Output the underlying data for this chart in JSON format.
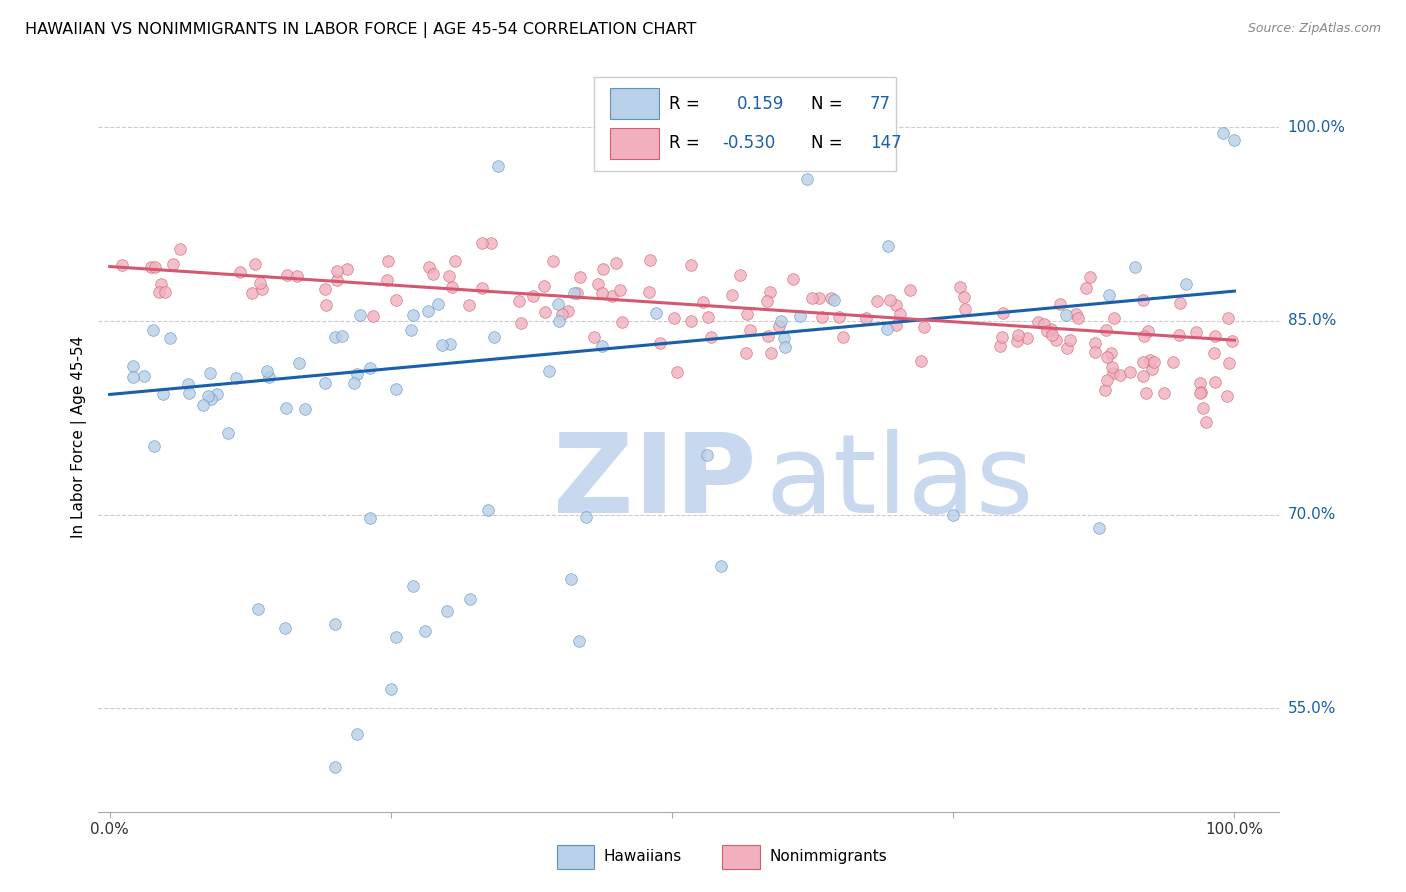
{
  "title": "HAWAIIAN VS NONIMMIGRANTS IN LABOR FORCE | AGE 45-54 CORRELATION CHART",
  "source_text": "Source: ZipAtlas.com",
  "ylabel": "In Labor Force | Age 45-54",
  "xlim": [
    -0.01,
    1.04
  ],
  "ylim": [
    0.47,
    1.05
  ],
  "ytick_positions": [
    0.55,
    0.7,
    0.85,
    1.0
  ],
  "ytick_labels": [
    "55.0%",
    "70.0%",
    "85.0%",
    "100.0%"
  ],
  "xtick_positions": [
    0.0,
    0.25,
    0.5,
    0.75,
    1.0
  ],
  "xtick_labels": [
    "0.0%",
    "",
    "",
    "",
    "100.0%"
  ],
  "hawaiians_R": 0.159,
  "hawaiians_N": 77,
  "nonimmigrants_R": -0.53,
  "nonimmigrants_N": 147,
  "hawaiian_fill": "#b8d0e8",
  "hawaiian_edge": "#6090c0",
  "nonimmigrant_fill": "#f0b0be",
  "nonimmigrant_edge": "#d06070",
  "trendline_hawaiian": "#1a5faa",
  "trendline_nonimmigrant": "#d45870",
  "background_color": "#ffffff",
  "grid_color": "#cccccc",
  "watermark_zip_color": "#c8d8ee",
  "watermark_atlas_color": "#c8d8ee",
  "legend_R_color": "#1a5faa",
  "legend_N_color": "#1a5faa",
  "haw_trend_x0": 0.0,
  "haw_trend_y0": 0.793,
  "haw_trend_x1": 1.0,
  "haw_trend_y1": 0.873,
  "non_trend_x0": 0.0,
  "non_trend_y0": 0.892,
  "non_trend_x1": 1.0,
  "non_trend_y1": 0.835
}
